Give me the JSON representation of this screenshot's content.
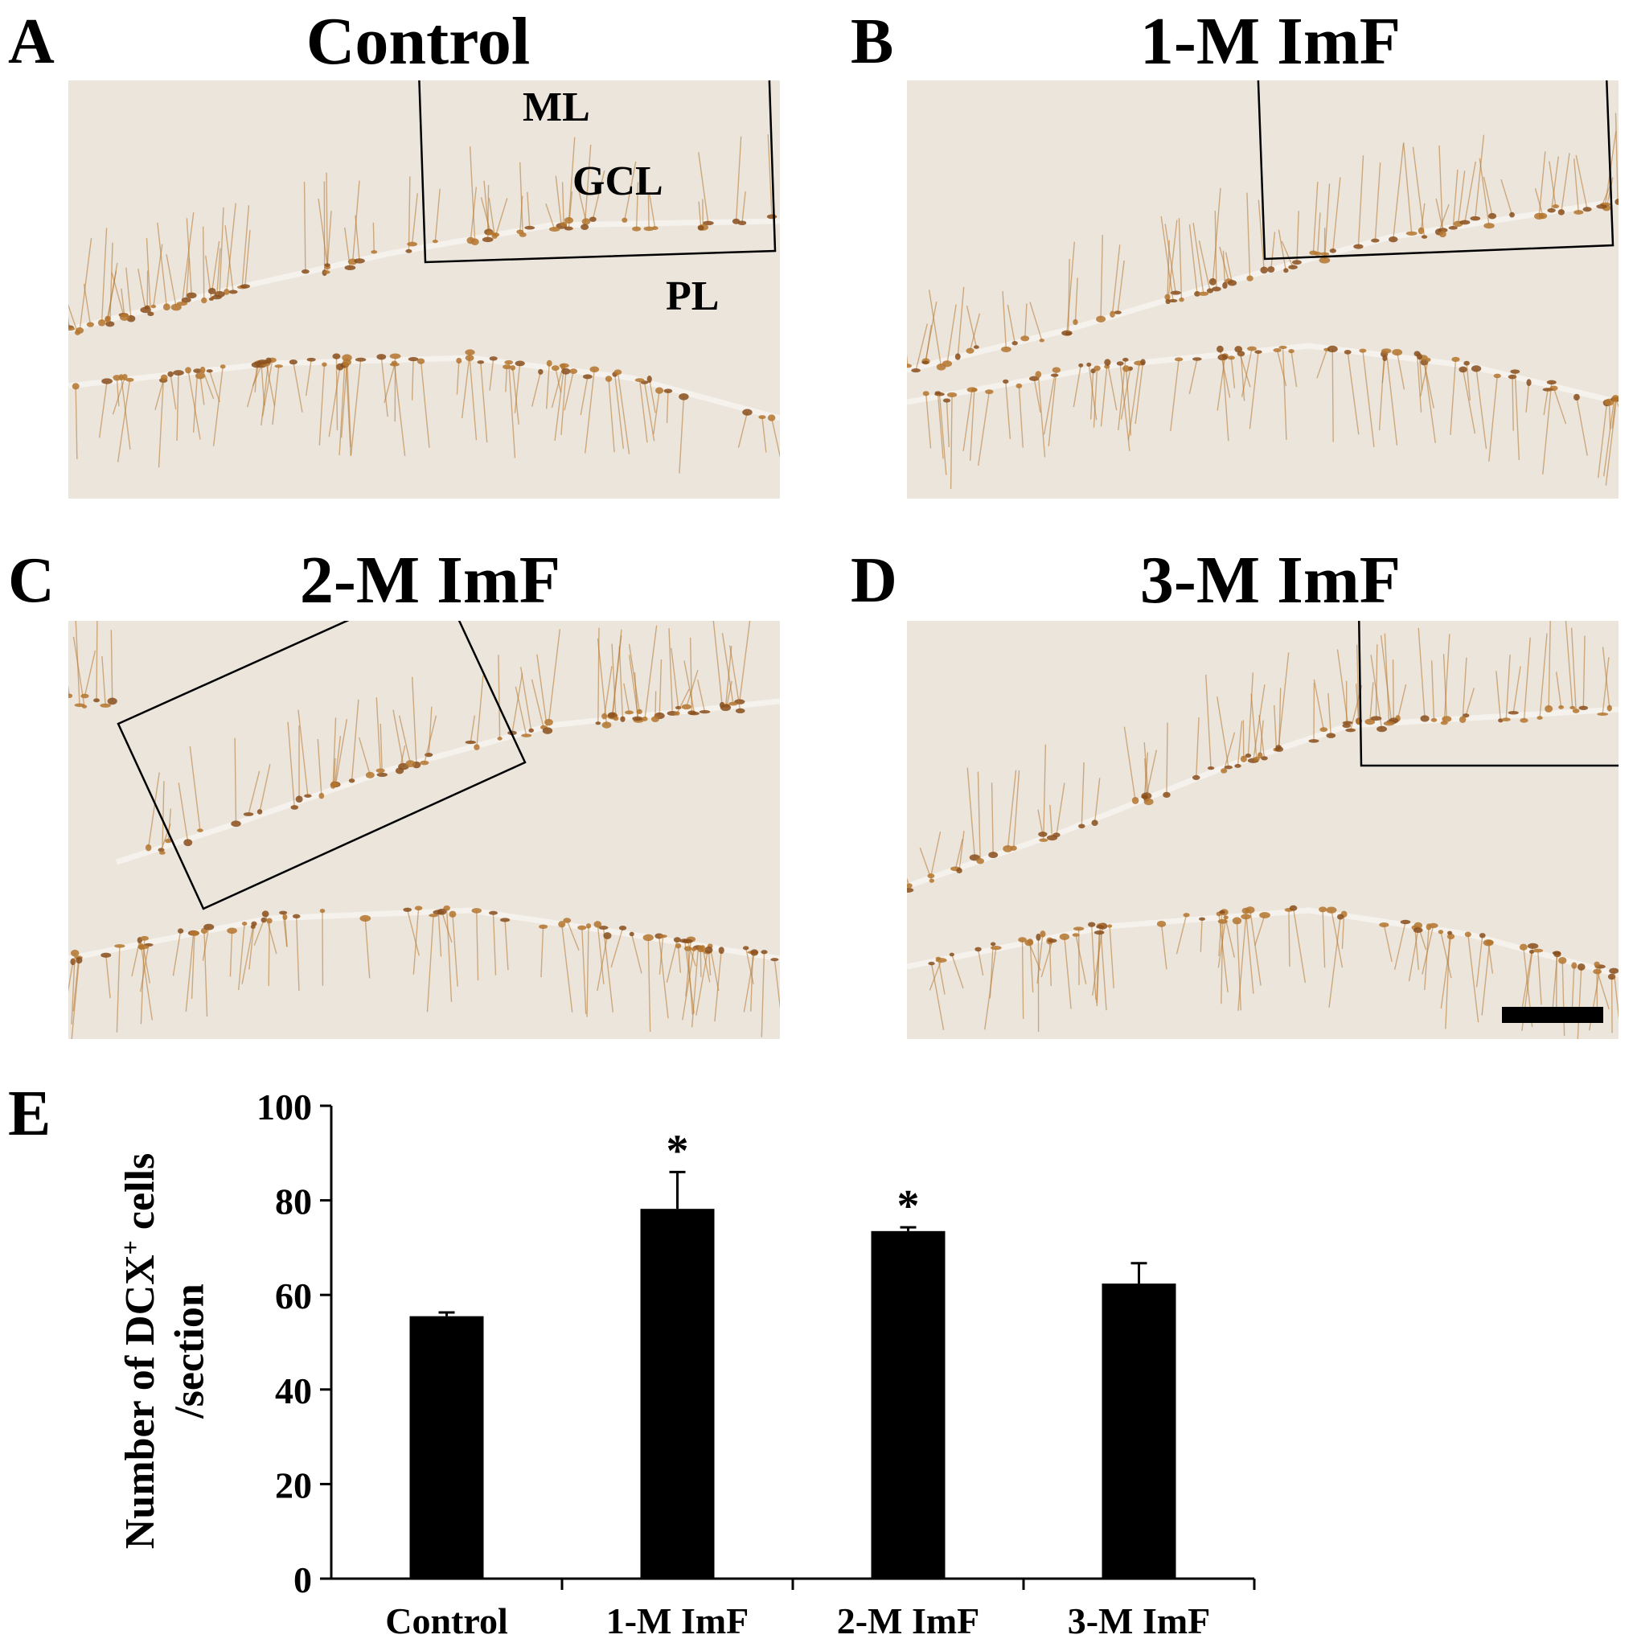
{
  "panels": [
    {
      "letter": "A",
      "title": "Control",
      "layers": [
        "ML",
        "GCL",
        "PL"
      ]
    },
    {
      "letter": "B",
      "title": "1-M ImF"
    },
    {
      "letter": "C",
      "title": "2-M ImF"
    },
    {
      "letter": "D",
      "title": "3-M ImF"
    }
  ],
  "colors": {
    "tissue_background": "#ebe5dc",
    "stain": "#b4762e",
    "stain_dark": "#8a4f1c",
    "bar_fill": "#000000"
  },
  "chart_panel_letter": "E",
  "chart_data": {
    "type": "bar",
    "categories": [
      "Control",
      "1-M ImF",
      "2-M ImF",
      "3-M ImF"
    ],
    "values": [
      55.5,
      78.2,
      73.5,
      62.4
    ],
    "errors": [
      0.8,
      7.8,
      0.8,
      4.3
    ],
    "significance": [
      "",
      "*",
      "*",
      ""
    ],
    "ylabel_line1": "Number of DCX",
    "ylabel_sup": "+",
    "ylabel_line1_end": " cells",
    "ylabel_line2": "/section",
    "xlabel": "",
    "ylim": [
      0,
      100
    ],
    "yticks": [
      "0",
      "20",
      "40",
      "60",
      "80",
      "100"
    ],
    "grid": false,
    "legend": "none"
  }
}
